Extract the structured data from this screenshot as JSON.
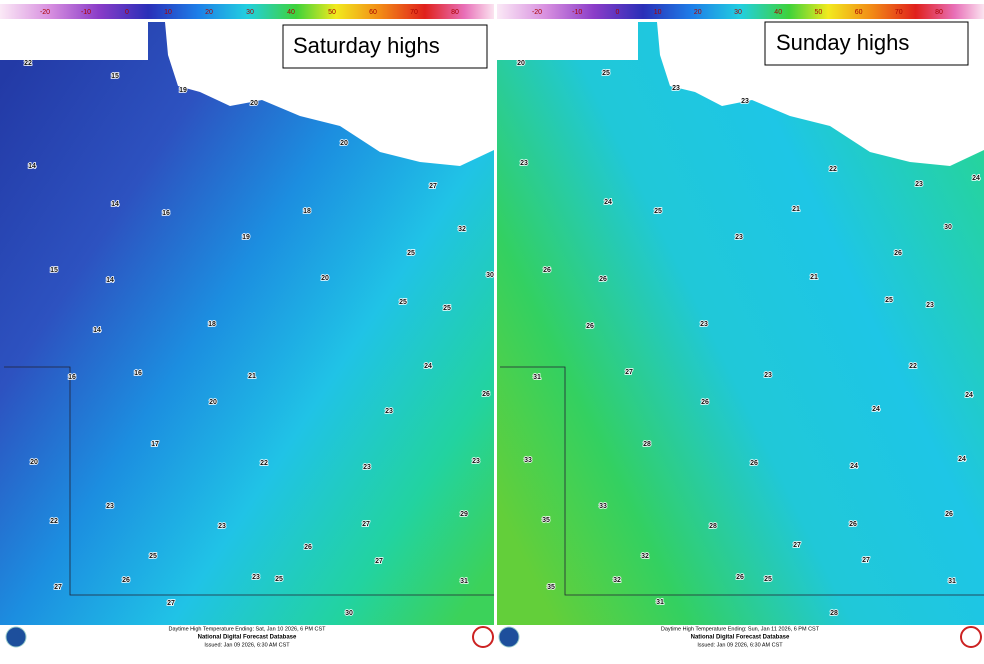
{
  "panels": [
    {
      "title": "Saturday highs",
      "scale_labels": [
        -20,
        -10,
        0,
        10,
        20,
        30,
        40,
        50,
        60,
        70,
        80
      ],
      "temperatures": [
        22,
        15,
        19,
        20,
        14,
        20,
        14,
        16,
        18,
        27,
        19,
        32,
        15,
        14,
        20,
        25,
        25,
        25,
        14,
        18,
        30,
        16,
        16,
        21,
        24,
        26,
        20,
        23,
        17,
        20,
        22,
        23,
        23,
        23,
        22,
        23,
        29,
        27,
        25,
        26,
        27,
        26,
        23,
        25,
        31,
        27,
        27,
        30
      ],
      "footer": {
        "line1": "Daytime High Temperature Ending: Sat, Jan 10 2026, 6 PM CST",
        "line2": "National Digital Forecast Database",
        "line3": "Issued: Jan 09 2026, 6:30 AM CST"
      }
    },
    {
      "title": "Sunday highs",
      "scale_labels": [
        -20,
        -10,
        0,
        10,
        20,
        30,
        40,
        50,
        60,
        70,
        80
      ],
      "temperatures": [
        20,
        25,
        23,
        23,
        23,
        22,
        24,
        25,
        21,
        23,
        23,
        30,
        24,
        26,
        26,
        21,
        26,
        25,
        23,
        26,
        23,
        31,
        27,
        23,
        22,
        24,
        26,
        24,
        28,
        33,
        26,
        24,
        24,
        33,
        35,
        28,
        26,
        26,
        32,
        27,
        27,
        32,
        26,
        25,
        31,
        35,
        31,
        28
      ],
      "footer": {
        "line1": "Daytime High Temperature Ending: Sun, Jan 11 2026, 6 PM CST",
        "line2": "National Digital Forecast Database",
        "line3": "Issued: Jan 09 2026, 6:30 AM CST"
      }
    }
  ]
}
